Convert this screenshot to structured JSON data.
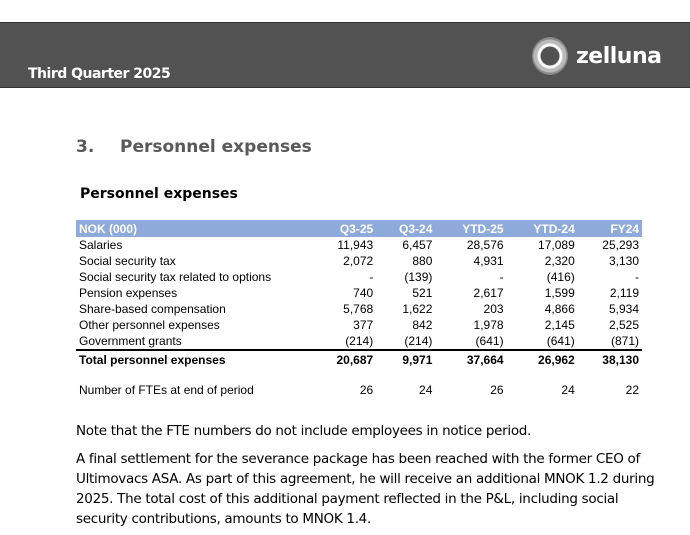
{
  "header": {
    "report_period": "Third Quarter 2025",
    "logo_text": "zelluna"
  },
  "section": {
    "number": "3.",
    "title": "Personnel expenses"
  },
  "table": {
    "title": "Personnel expenses",
    "columns": [
      "NOK (000)",
      "Q3-25",
      "Q3-24",
      "YTD-25",
      "YTD-24",
      "FY24"
    ],
    "rows": [
      [
        "Salaries",
        "11,943",
        "6,457",
        "28,576",
        "17,089",
        "25,293"
      ],
      [
        "Social security tax",
        "2,072",
        "880",
        "4,931",
        "2,320",
        "3,130"
      ],
      [
        "Social security tax related to options",
        "-",
        "(139)",
        "-",
        "(416)",
        "-"
      ],
      [
        "Pension expenses",
        "740",
        "521",
        "2,617",
        "1,599",
        "2,119"
      ],
      [
        "Share-based compensation",
        "5,768",
        "1,622",
        "203",
        "4,866",
        "5,934"
      ],
      [
        "Other personnel expenses",
        "377",
        "842",
        "1,978",
        "2,145",
        "2,525"
      ],
      [
        "Government grants",
        "(214)",
        "(214)",
        "(641)",
        "(641)",
        "(871)"
      ]
    ],
    "total": [
      "Total personnel expenses",
      "20,687",
      "9,971",
      "37,664",
      "26,962",
      "38,130"
    ],
    "fte": [
      "Number of FTEs at end of period",
      "26",
      "24",
      "26",
      "24",
      "22"
    ]
  },
  "notes": [
    "Note that the FTE numbers do not include employees in notice period.",
    "A final settlement for the severance package has been reached with the former CEO of Ultimovacs ASA. As part of this agreement, he will receive an additional MNOK 1.2 during 2025. The total cost of this additional payment reflected in the P&L, including social security contributions, amounts to MNOK 1.4."
  ]
}
